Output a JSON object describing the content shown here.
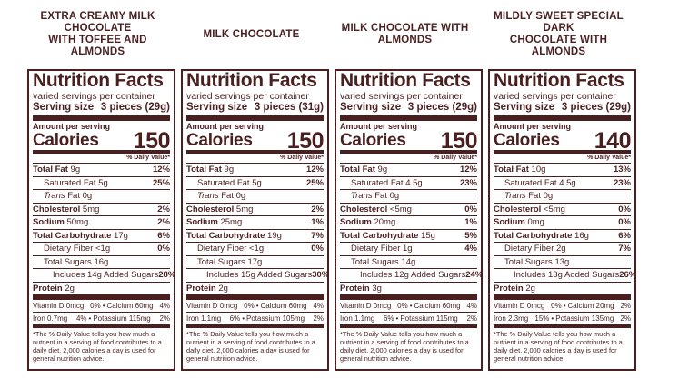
{
  "dv_header": "% Daily Value*",
  "footnote": "*The % Daily Value tells you how much a nutrient in a serving of food contributes to a daily diet. 2,000 calories a day is used for general nutrition advice.",
  "panels": [
    {
      "heading_line1": "EXTRA CREAMY MILK CHOCOLATE",
      "heading_line2": "WITH TOFFEE AND ALMONDS",
      "title": "Nutrition Facts",
      "servings": "varied servings per container",
      "serving_label": "Serving size",
      "serving_value": "3 pieces (29g)",
      "amount_per_serving": "Amount per serving",
      "calories_label": "Calories",
      "calories": "150",
      "total_fat": "Total Fat",
      "total_fat_amt": "9g",
      "total_fat_dv": "12%",
      "sat_fat": "Saturated Fat 5g",
      "sat_fat_dv": "25%",
      "trans_fat": "Trans",
      "trans_fat_rest": "Fat 0g",
      "cholesterol": "Cholesterol",
      "cholesterol_amt": "5mg",
      "cholesterol_dv": "2%",
      "sodium": "Sodium",
      "sodium_amt": "50mg",
      "sodium_dv": "2%",
      "carb": "Total Carbohydrate",
      "carb_amt": "17g",
      "carb_dv": "6%",
      "fiber": "Dietary Fiber <1g",
      "fiber_dv": "0%",
      "sugars": "Total Sugars 16g",
      "added": "Includes 14g Added Sugars",
      "added_dv": "28%",
      "protein": "Protein",
      "protein_amt": "2g",
      "vitd": "Vitamin D 0mcg",
      "vitd_dv": "0%",
      "calcium": "Calcium 60mg",
      "calcium_dv": "4%",
      "iron": "Iron 0.7mg",
      "iron_dv": "4%",
      "potassium": "Potassium 115mg",
      "potassium_dv": "2%"
    },
    {
      "heading_line1": "MILK CHOCOLATE",
      "heading_line2": "",
      "title": "Nutrition Facts",
      "servings": "varied servings per container",
      "serving_label": "Serving size",
      "serving_value": "3 pieces (31g)",
      "amount_per_serving": "Amount per serving",
      "calories_label": "Calories",
      "calories": "150",
      "total_fat": "Total Fat",
      "total_fat_amt": "9g",
      "total_fat_dv": "12%",
      "sat_fat": "Saturated Fat 5g",
      "sat_fat_dv": "25%",
      "trans_fat": "Trans",
      "trans_fat_rest": "Fat 0g",
      "cholesterol": "Cholesterol",
      "cholesterol_amt": "5mg",
      "cholesterol_dv": "2%",
      "sodium": "Sodium",
      "sodium_amt": "25mg",
      "sodium_dv": "1%",
      "carb": "Total Carbohydrate",
      "carb_amt": "19g",
      "carb_dv": "7%",
      "fiber": "Dietary Fiber <1g",
      "fiber_dv": "0%",
      "sugars": "Total Sugars 17g",
      "added": "Includes 15g Added Sugars",
      "added_dv": "30%",
      "protein": "Protein",
      "protein_amt": "2g",
      "vitd": "Vitamin D 0mcg",
      "vitd_dv": "0%",
      "calcium": "Calcium 60mg",
      "calcium_dv": "4%",
      "iron": "Iron 1.1mg",
      "iron_dv": "6%",
      "potassium": "Potassium 105mg",
      "potassium_dv": "2%"
    },
    {
      "heading_line1": "MILK CHOCOLATE WITH ALMONDS",
      "heading_line2": "",
      "title": "Nutrition Facts",
      "servings": "varied servings per container",
      "serving_label": "Serving size",
      "serving_value": "3 pieces (29g)",
      "amount_per_serving": "Amount per serving",
      "calories_label": "Calories",
      "calories": "150",
      "total_fat": "Total Fat",
      "total_fat_amt": "9g",
      "total_fat_dv": "12%",
      "sat_fat": "Saturated Fat 4.5g",
      "sat_fat_dv": "23%",
      "trans_fat": "Trans",
      "trans_fat_rest": "Fat 0g",
      "cholesterol": "Cholesterol",
      "cholesterol_amt": "<5mg",
      "cholesterol_dv": "0%",
      "sodium": "Sodium",
      "sodium_amt": "20mg",
      "sodium_dv": "1%",
      "carb": "Total Carbohydrate",
      "carb_amt": "15g",
      "carb_dv": "5%",
      "fiber": "Dietary Fiber 1g",
      "fiber_dv": "4%",
      "sugars": "Total Sugars 14g",
      "added": "Includes 12g Added Sugars",
      "added_dv": "24%",
      "protein": "Protein",
      "protein_amt": "3g",
      "vitd": "Vitamin D 0mcg",
      "vitd_dv": "0%",
      "calcium": "Calcium 60mg",
      "calcium_dv": "4%",
      "iron": "Iron 1.1mg",
      "iron_dv": "6%",
      "potassium": "Potassium 115mg",
      "potassium_dv": "2%"
    },
    {
      "heading_line1": "MILDLY SWEET SPECIAL DARK",
      "heading_line2": "CHOCOLATE WITH ALMONDS",
      "title": "Nutrition Facts",
      "servings": "varied servings per container",
      "serving_label": "Serving size",
      "serving_value": "3 pieces (29g)",
      "amount_per_serving": "Amount per serving",
      "calories_label": "Calories",
      "calories": "140",
      "total_fat": "Total Fat",
      "total_fat_amt": "10g",
      "total_fat_dv": "13%",
      "sat_fat": "Saturated Fat 4.5g",
      "sat_fat_dv": "23%",
      "trans_fat": "Trans",
      "trans_fat_rest": "Fat 0g",
      "cholesterol": "Cholesterol",
      "cholesterol_amt": "<5mg",
      "cholesterol_dv": "0%",
      "sodium": "Sodium",
      "sodium_amt": "0mg",
      "sodium_dv": "0%",
      "carb": "Total Carbohydrate",
      "carb_amt": "16g",
      "carb_dv": "6%",
      "fiber": "Dietary Fiber 2g",
      "fiber_dv": "7%",
      "sugars": "Total Sugars 13g",
      "added": "Includes 13g Added Sugars",
      "added_dv": "26%",
      "protein": "Protein",
      "protein_amt": "2g",
      "vitd": "Vitamin D 0mcg",
      "vitd_dv": "0%",
      "calcium": "Calcium 20mg",
      "calcium_dv": "2%",
      "iron": "Iron 2.3mg",
      "iron_dv": "15%",
      "potassium": "Potassium 135mg",
      "potassium_dv": "2%"
    }
  ]
}
